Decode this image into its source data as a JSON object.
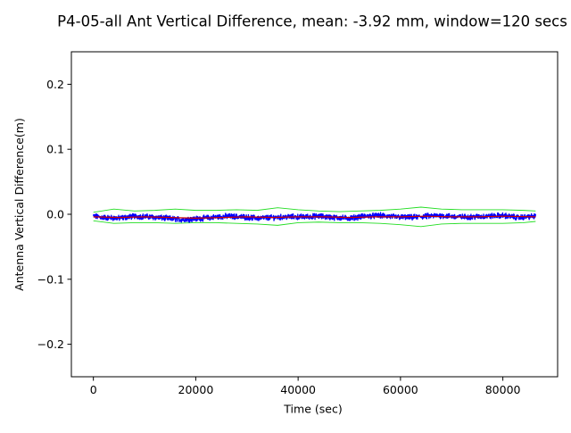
{
  "chart_data": {
    "type": "line",
    "title": "P4-05-all Ant Vertical Difference, mean: -3.92 mm, window=120 secs",
    "xlabel": "Time (sec)",
    "ylabel": "Antenna Vertical Difference(m)",
    "xlim": [
      -4300,
      90700
    ],
    "ylim": [
      -0.25,
      0.25
    ],
    "x_ticks": [
      0,
      20000,
      40000,
      60000,
      80000
    ],
    "x_tick_labels": [
      "0",
      "20000",
      "40000",
      "60000",
      "80000"
    ],
    "y_ticks": [
      -0.2,
      -0.1,
      0.0,
      0.1,
      0.2
    ],
    "y_tick_labels": [
      "−0.2",
      "−0.1",
      "0.0",
      "0.1",
      "0.2"
    ],
    "grid": false,
    "legend": "none",
    "series": [
      {
        "color": "#0000ff",
        "style": "dense noisy line",
        "x": [
          0,
          2000,
          5000,
          8000,
          11000,
          14000,
          17000,
          20000,
          23000,
          26000,
          29000,
          32000,
          35000,
          38000,
          41000,
          44000,
          47000,
          50000,
          53000,
          56000,
          59000,
          62000,
          65000,
          68000,
          71000,
          74000,
          77000,
          80000,
          83000,
          86400
        ],
        "y": [
          -0.003,
          -0.005,
          -0.006,
          -0.003,
          -0.004,
          -0.006,
          -0.008,
          -0.007,
          -0.005,
          -0.003,
          -0.004,
          -0.006,
          -0.005,
          -0.004,
          -0.004,
          -0.003,
          -0.005,
          -0.006,
          -0.003,
          -0.002,
          -0.004,
          -0.005,
          -0.003,
          -0.002,
          -0.004,
          -0.004,
          -0.003,
          -0.002,
          -0.005,
          -0.003
        ]
      },
      {
        "color": "#cc0000",
        "style": "moving mean",
        "x": [
          0,
          5000,
          10000,
          15000,
          20000,
          25000,
          30000,
          35000,
          40000,
          45000,
          50000,
          55000,
          60000,
          65000,
          70000,
          75000,
          80000,
          86400
        ],
        "y": [
          -0.004,
          -0.005,
          -0.004,
          -0.005,
          -0.006,
          -0.005,
          -0.004,
          -0.005,
          -0.004,
          -0.004,
          -0.005,
          -0.004,
          -0.004,
          -0.003,
          -0.004,
          -0.004,
          -0.003,
          -0.004
        ]
      },
      {
        "color": "#22dd22",
        "style": "upper envelope",
        "x": [
          0,
          4000,
          8000,
          12000,
          16000,
          20000,
          24000,
          28000,
          32000,
          36000,
          40000,
          44000,
          48000,
          52000,
          56000,
          60000,
          64000,
          68000,
          72000,
          76000,
          80000,
          84000,
          86400
        ],
        "y": [
          0.003,
          0.008,
          0.005,
          0.006,
          0.008,
          0.006,
          0.006,
          0.007,
          0.006,
          0.01,
          0.007,
          0.005,
          0.004,
          0.005,
          0.006,
          0.008,
          0.011,
          0.008,
          0.007,
          0.007,
          0.007,
          0.006,
          0.005
        ]
      },
      {
        "color": "#22dd22",
        "style": "lower envelope",
        "x": [
          0,
          4000,
          8000,
          12000,
          16000,
          20000,
          24000,
          28000,
          32000,
          36000,
          40000,
          44000,
          48000,
          52000,
          56000,
          60000,
          64000,
          68000,
          72000,
          76000,
          80000,
          84000,
          86400
        ],
        "y": [
          -0.01,
          -0.014,
          -0.013,
          -0.013,
          -0.014,
          -0.013,
          -0.013,
          -0.014,
          -0.015,
          -0.017,
          -0.013,
          -0.012,
          -0.013,
          -0.013,
          -0.014,
          -0.016,
          -0.019,
          -0.015,
          -0.014,
          -0.014,
          -0.014,
          -0.013,
          -0.011
        ]
      }
    ]
  }
}
